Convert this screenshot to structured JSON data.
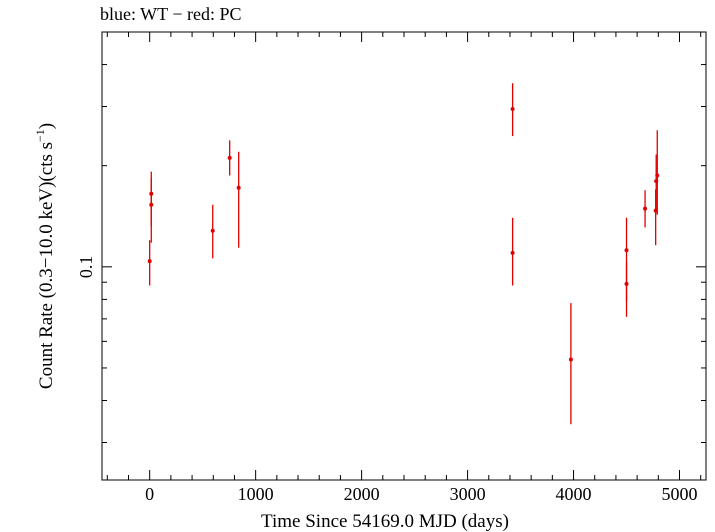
{
  "chart_data": {
    "type": "scatter",
    "title": "blue: WT − red: PC",
    "xlabel": "Time Since 54169.0 MJD (days)",
    "ylabel_main": "Count Rate (0.3−10.0 keV)(cts s",
    "ylabel_sup": "−1",
    "ylabel_close": ")",
    "x_scale": "linear",
    "y_scale": "log",
    "xlim": [
      -450,
      5250
    ],
    "ylim": [
      0.0232,
      0.5
    ],
    "x_ticks": [
      0,
      1000,
      2000,
      3000,
      4000,
      5000
    ],
    "x_tick_labels": [
      "0",
      "1000",
      "2000",
      "3000",
      "4000",
      "5000"
    ],
    "y_major_ticks": [
      0.1
    ],
    "y_tick_labels": [
      "0.1"
    ],
    "y_minor_ticks": [
      0.03,
      0.04,
      0.05,
      0.06,
      0.07,
      0.08,
      0.09,
      0.2,
      0.3,
      0.4
    ],
    "grid": false,
    "legend": "none",
    "colors": {
      "PC": "#e00000",
      "WT": "#0000ff"
    },
    "series": [
      {
        "name": "PC",
        "points": [
          {
            "x": 0,
            "y": 0.104,
            "ylo": 0.088,
            "yhi": 0.12
          },
          {
            "x": 15,
            "y": 0.165,
            "ylo": 0.132,
            "yhi": 0.192
          },
          {
            "x": 15,
            "y": 0.153,
            "ylo": 0.118,
            "yhi": 0.183
          },
          {
            "x": 595,
            "y": 0.128,
            "ylo": 0.106,
            "yhi": 0.153
          },
          {
            "x": 755,
            "y": 0.211,
            "ylo": 0.187,
            "yhi": 0.238
          },
          {
            "x": 840,
            "y": 0.172,
            "ylo": 0.114,
            "yhi": 0.22
          },
          {
            "x": 3425,
            "y": 0.295,
            "ylo": 0.245,
            "yhi": 0.352
          },
          {
            "x": 3425,
            "y": 0.11,
            "ylo": 0.088,
            "yhi": 0.14
          },
          {
            "x": 3975,
            "y": 0.053,
            "ylo": 0.034,
            "yhi": 0.078
          },
          {
            "x": 4500,
            "y": 0.112,
            "ylo": 0.079,
            "yhi": 0.14
          },
          {
            "x": 4500,
            "y": 0.089,
            "ylo": 0.071,
            "yhi": 0.103
          },
          {
            "x": 4675,
            "y": 0.149,
            "ylo": 0.131,
            "yhi": 0.169
          },
          {
            "x": 4775,
            "y": 0.147,
            "ylo": 0.116,
            "yhi": 0.17
          },
          {
            "x": 4780,
            "y": 0.18,
            "ylo": 0.147,
            "yhi": 0.216
          },
          {
            "x": 4790,
            "y": 0.187,
            "ylo": 0.143,
            "yhi": 0.255
          }
        ]
      }
    ]
  }
}
